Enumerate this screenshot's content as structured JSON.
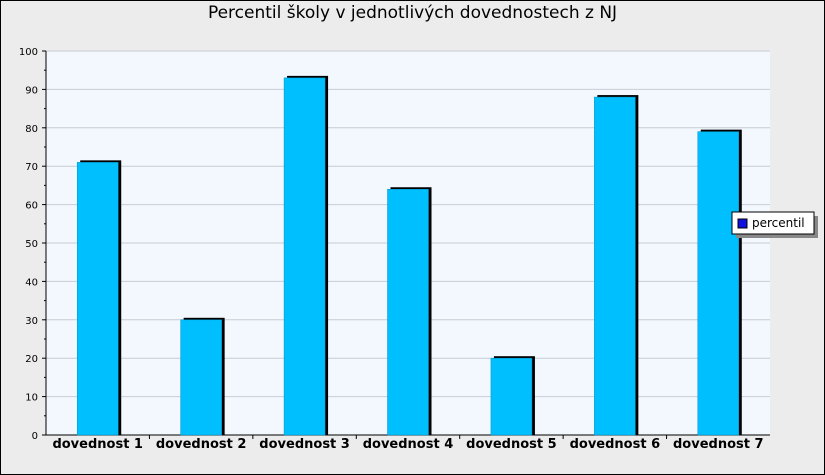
{
  "chart_data": {
    "type": "bar",
    "title": "Percentil školy v jednotlivých dovednostech z NJ",
    "xlabel": "",
    "ylabel": "",
    "categories": [
      "dovednost 1",
      "dovednost 2",
      "dovednost 3",
      "dovednost 4",
      "dovednost 5",
      "dovednost 6",
      "dovednost 7"
    ],
    "series": [
      {
        "name": "percentil",
        "values": [
          71,
          30,
          93,
          64,
          20,
          88,
          79
        ]
      }
    ],
    "ylim": [
      0,
      100
    ],
    "yticks": [
      0,
      10,
      20,
      30,
      40,
      50,
      60,
      70,
      80,
      90,
      100
    ],
    "grid": true,
    "legend": "right",
    "colors": {
      "bar": "#00bfff",
      "bar_shadow": "#000000",
      "plot_bg": "#f2f8fe",
      "grid": "#c8ccd4",
      "legend_marker": "#1010e0"
    }
  }
}
